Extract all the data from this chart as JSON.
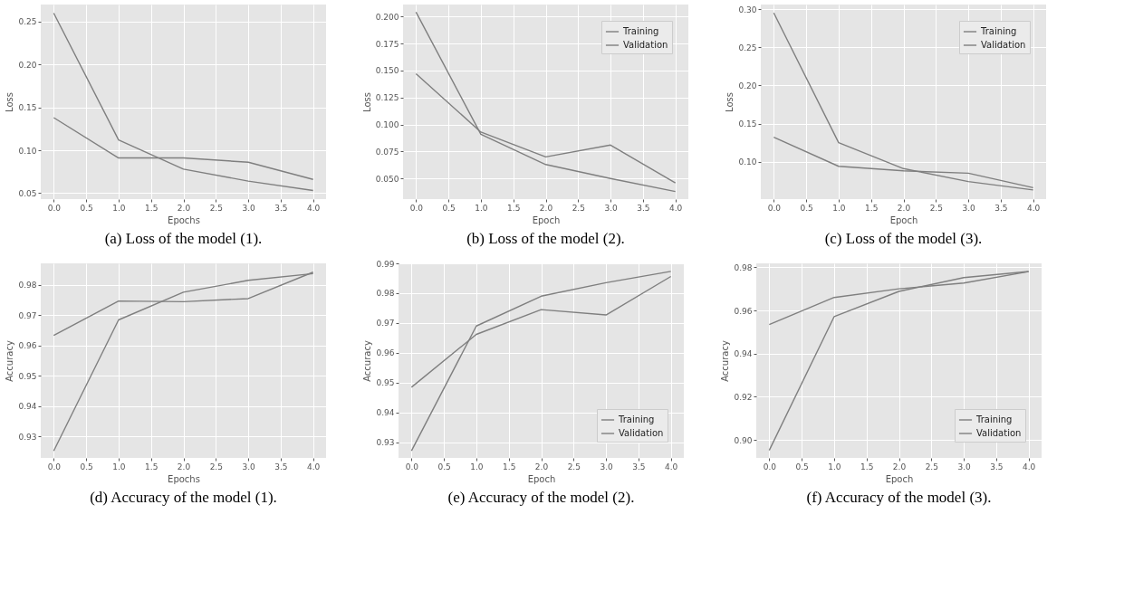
{
  "chart_data": [
    {
      "type": "line",
      "title": "(a) Loss of the model (1).",
      "xlabel": "Epochs",
      "ylabel": "Loss",
      "x": [
        0,
        1,
        2,
        3,
        4
      ],
      "xlim": [
        -0.2,
        4.2
      ],
      "xticks": [
        {
          "value": 0,
          "label": "0.0"
        },
        0.5,
        {
          "value": 1,
          "label": "1.0"
        },
        1.5,
        {
          "value": 2,
          "label": "2.0"
        },
        2.5,
        {
          "value": 3,
          "label": "3.0"
        },
        3.5,
        {
          "value": 4,
          "label": "4.0"
        }
      ],
      "ylim": [
        0.043,
        0.27
      ],
      "yticks": [
        0.05,
        {
          "value": 0.1,
          "label": "0.10"
        },
        0.15,
        {
          "value": 0.2,
          "label": "0.20"
        },
        0.25
      ],
      "grid": true,
      "legend": false,
      "series": [
        {
          "color": "#7f7f7f",
          "values": [
            0.26,
            0.112,
            0.078,
            0.064,
            0.053
          ]
        },
        {
          "color": "#7f7f7f",
          "values": [
            0.138,
            0.091,
            0.091,
            0.086,
            0.066
          ]
        }
      ]
    },
    {
      "type": "line",
      "title": "(b) Loss of the model (2).",
      "xlabel": "Epoch",
      "ylabel": "Loss",
      "x": [
        0,
        1,
        2,
        3,
        4
      ],
      "xlim": [
        -0.2,
        4.2
      ],
      "xticks": [
        {
          "value": 0,
          "label": "0.0"
        },
        0.5,
        {
          "value": 1,
          "label": "1.0"
        },
        1.5,
        {
          "value": 2,
          "label": "2.0"
        },
        2.5,
        {
          "value": 3,
          "label": "3.0"
        },
        3.5,
        {
          "value": 4,
          "label": "4.0"
        }
      ],
      "ylim": [
        0.031,
        0.211
      ],
      "yticks": [
        {
          "value": 0.05,
          "label": "0.050"
        },
        0.075,
        {
          "value": 0.1,
          "label": "0.100"
        },
        0.125,
        {
          "value": 0.15,
          "label": "0.150"
        },
        0.175,
        {
          "value": 0.2,
          "label": "0.200"
        }
      ],
      "grid": true,
      "legend": "top right",
      "series": [
        {
          "name": "Training",
          "color": "#7f7f7f",
          "values": [
            0.204,
            0.091,
            0.063,
            0.05,
            0.038
          ]
        },
        {
          "name": "Validation",
          "color": "#7f7f7f",
          "values": [
            0.147,
            0.093,
            0.07,
            0.081,
            0.046
          ]
        }
      ]
    },
    {
      "type": "line",
      "title": "(c) Loss of the model (3).",
      "xlabel": "Epoch",
      "ylabel": "Loss",
      "x": [
        0,
        1,
        2,
        3,
        4
      ],
      "xlim": [
        -0.2,
        4.2
      ],
      "xticks": [
        {
          "value": 0,
          "label": "0.0"
        },
        0.5,
        {
          "value": 1,
          "label": "1.0"
        },
        1.5,
        {
          "value": 2,
          "label": "2.0"
        },
        2.5,
        {
          "value": 3,
          "label": "3.0"
        },
        3.5,
        {
          "value": 4,
          "label": "4.0"
        }
      ],
      "ylim": [
        0.051,
        0.306
      ],
      "yticks": [
        {
          "value": 0.1,
          "label": "0.10"
        },
        0.15,
        {
          "value": 0.2,
          "label": "0.20"
        },
        0.25,
        {
          "value": 0.3,
          "label": "0.30"
        }
      ],
      "grid": true,
      "legend": "top right",
      "series": [
        {
          "name": "Training",
          "color": "#7f7f7f",
          "values": [
            0.295,
            0.125,
            0.091,
            0.074,
            0.063
          ]
        },
        {
          "name": "Validation",
          "color": "#7f7f7f",
          "values": [
            0.132,
            0.094,
            0.088,
            0.085,
            0.066
          ]
        }
      ]
    },
    {
      "type": "line",
      "title": "(d) Accuracy of the model (1).",
      "xlabel": "Epochs",
      "ylabel": "Accuracy",
      "x": [
        0,
        1,
        2,
        3,
        4
      ],
      "xlim": [
        -0.2,
        4.2
      ],
      "xticks": [
        {
          "value": 0,
          "label": "0.0"
        },
        0.5,
        {
          "value": 1,
          "label": "1.0"
        },
        1.5,
        {
          "value": 2,
          "label": "2.0"
        },
        2.5,
        {
          "value": 3,
          "label": "3.0"
        },
        3.5,
        {
          "value": 4,
          "label": "4.0"
        }
      ],
      "ylim": [
        0.923,
        0.987
      ],
      "yticks": [
        0.93,
        0.94,
        0.95,
        0.96,
        0.97,
        0.98
      ],
      "grid": true,
      "legend": false,
      "series": [
        {
          "color": "#7f7f7f",
          "values": [
            0.9253,
            0.9684,
            0.9775,
            0.9814,
            0.9836
          ]
        },
        {
          "color": "#7f7f7f",
          "values": [
            0.9633,
            0.9746,
            0.9744,
            0.9754,
            0.9841
          ]
        }
      ]
    },
    {
      "type": "line",
      "title": "(e) Accuracy of the model (2).",
      "xlabel": "Epoch",
      "ylabel": "Accuracy",
      "x": [
        0,
        1,
        2,
        3,
        4
      ],
      "xlim": [
        -0.2,
        4.2
      ],
      "xticks": [
        {
          "value": 0,
          "label": "0.0"
        },
        0.5,
        {
          "value": 1,
          "label": "1.0"
        },
        1.5,
        {
          "value": 2,
          "label": "2.0"
        },
        2.5,
        {
          "value": 3,
          "label": "3.0"
        },
        3.5,
        {
          "value": 4,
          "label": "4.0"
        }
      ],
      "ylim": [
        0.9248,
        0.99
      ],
      "yticks": [
        0.93,
        0.94,
        0.95,
        0.96,
        0.97,
        0.98,
        0.99
      ],
      "grid": true,
      "legend": "bottom right",
      "series": [
        {
          "name": "Training",
          "color": "#7f7f7f",
          "values": [
            0.9272,
            0.969,
            0.979,
            0.9835,
            0.9873
          ]
        },
        {
          "name": "Validation",
          "color": "#7f7f7f",
          "values": [
            0.9485,
            0.9662,
            0.9745,
            0.9727,
            0.9856
          ]
        }
      ]
    },
    {
      "type": "line",
      "title": "(f) Accuracy of the model (3).",
      "xlabel": "Epoch",
      "ylabel": "Accuracy",
      "x": [
        0,
        1,
        2,
        3,
        4
      ],
      "xlim": [
        -0.2,
        4.2
      ],
      "xticks": [
        {
          "value": 0,
          "label": "0.0"
        },
        0.5,
        {
          "value": 1,
          "label": "1.0"
        },
        1.5,
        {
          "value": 2,
          "label": "2.0"
        },
        2.5,
        {
          "value": 3,
          "label": "3.0"
        },
        3.5,
        {
          "value": 4,
          "label": "4.0"
        }
      ],
      "ylim": [
        0.8917,
        0.9818
      ],
      "yticks": [
        {
          "value": 0.9,
          "label": "0.90"
        },
        0.92,
        0.94,
        0.96,
        0.98
      ],
      "grid": true,
      "legend": "bottom right",
      "series": [
        {
          "name": "Training",
          "color": "#7f7f7f",
          "values": [
            0.8952,
            0.9571,
            0.9688,
            0.9752,
            0.978
          ]
        },
        {
          "name": "Validation",
          "color": "#7f7f7f",
          "values": [
            0.9535,
            0.966,
            0.97,
            0.9727,
            0.978
          ]
        }
      ]
    }
  ]
}
